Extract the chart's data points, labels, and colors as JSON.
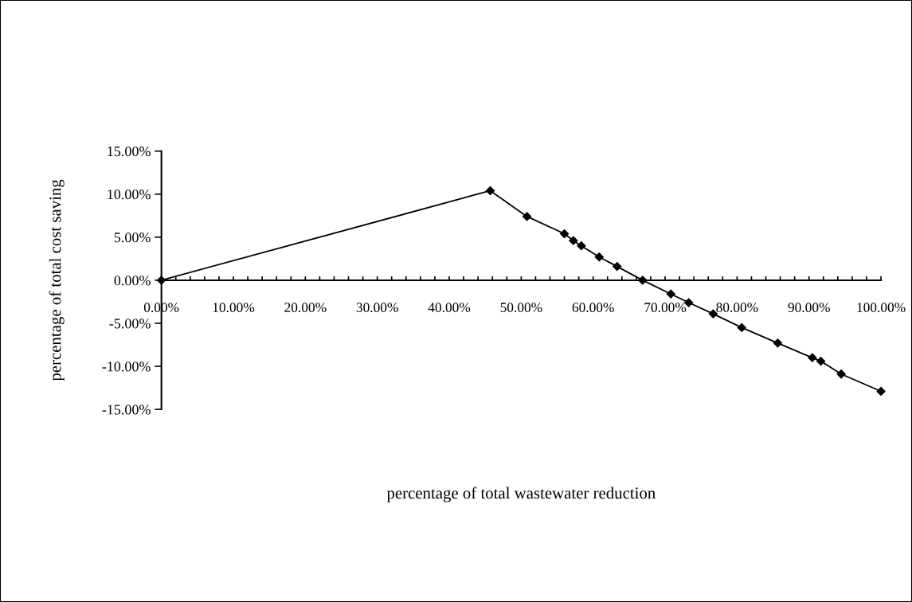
{
  "chart_data": {
    "type": "line",
    "xlabel": "percentage of total wastewater reduction",
    "ylabel": "percentage of total cost saving",
    "x": [
      0,
      45.7,
      50.8,
      56.0,
      57.25,
      58.36,
      60.84,
      63.32,
      66.87,
      70.8,
      73.28,
      76.68,
      80.65,
      85.65,
      90.46,
      91.64,
      94.47,
      100
    ],
    "series": [
      {
        "color": "#000000",
        "values": [
          0,
          10.4,
          7.4,
          5.4,
          4.6,
          4.0,
          2.7,
          1.6,
          0,
          -1.6,
          -2.6,
          -3.9,
          -5.5,
          -7.3,
          -9.0,
          -9.4,
          -10.9,
          -12.9
        ]
      }
    ],
    "marker": "diamond",
    "line_style": "solid",
    "grid": false,
    "legend": false,
    "xlim": [
      0,
      100
    ],
    "ylim": [
      -15,
      15
    ],
    "xticks": [
      {
        "value": 0,
        "label": "0.00%"
      },
      {
        "value": 2,
        "label": null
      },
      {
        "value": 4,
        "label": null
      },
      {
        "value": 6,
        "label": null
      },
      {
        "value": 8,
        "label": null
      },
      {
        "value": 10,
        "label": "10.00%"
      },
      {
        "value": 12,
        "label": null
      },
      {
        "value": 14,
        "label": null
      },
      {
        "value": 16,
        "label": null
      },
      {
        "value": 18,
        "label": null
      },
      {
        "value": 20,
        "label": "20.00%"
      },
      {
        "value": 22,
        "label": null
      },
      {
        "value": 24,
        "label": null
      },
      {
        "value": 26,
        "label": null
      },
      {
        "value": 28,
        "label": null
      },
      {
        "value": 30,
        "label": "30.00%"
      },
      {
        "value": 32,
        "label": null
      },
      {
        "value": 34,
        "label": null
      },
      {
        "value": 36,
        "label": null
      },
      {
        "value": 38,
        "label": null
      },
      {
        "value": 40,
        "label": "40.00%"
      },
      {
        "value": 42,
        "label": null
      },
      {
        "value": 44,
        "label": null
      },
      {
        "value": 46,
        "label": null
      },
      {
        "value": 48,
        "label": null
      },
      {
        "value": 50,
        "label": "50.00%"
      },
      {
        "value": 52,
        "label": null
      },
      {
        "value": 54,
        "label": null
      },
      {
        "value": 56,
        "label": null
      },
      {
        "value": 58,
        "label": null
      },
      {
        "value": 60,
        "label": "60.00%"
      },
      {
        "value": 62,
        "label": null
      },
      {
        "value": 64,
        "label": null
      },
      {
        "value": 66,
        "label": null
      },
      {
        "value": 68,
        "label": null
      },
      {
        "value": 70,
        "label": "70.00%"
      },
      {
        "value": 72,
        "label": null
      },
      {
        "value": 74,
        "label": null
      },
      {
        "value": 76,
        "label": null
      },
      {
        "value": 78,
        "label": null
      },
      {
        "value": 80,
        "label": "80.00%"
      },
      {
        "value": 82,
        "label": null
      },
      {
        "value": 84,
        "label": null
      },
      {
        "value": 86,
        "label": null
      },
      {
        "value": 88,
        "label": null
      },
      {
        "value": 90,
        "label": "90.00%"
      },
      {
        "value": 92,
        "label": null
      },
      {
        "value": 94,
        "label": null
      },
      {
        "value": 96,
        "label": null
      },
      {
        "value": 98,
        "label": null
      },
      {
        "value": 100,
        "label": "100.00%"
      }
    ],
    "yticks": [
      {
        "value": -15,
        "label": "-15.00%"
      },
      {
        "value": -10,
        "label": "-10.00%"
      },
      {
        "value": -5,
        "label": "-5.00%"
      },
      {
        "value": 0,
        "label": "0.00%"
      },
      {
        "value": 5,
        "label": "5.00%"
      },
      {
        "value": 10,
        "label": "10.00%"
      },
      {
        "value": 15,
        "label": "15.00%"
      }
    ]
  }
}
